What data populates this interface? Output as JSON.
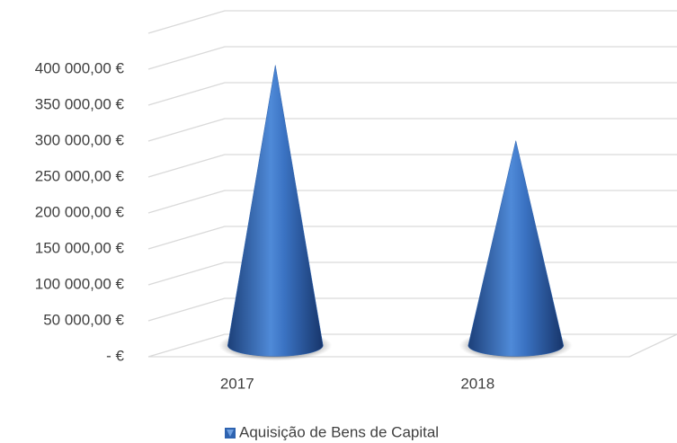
{
  "chart_data": {
    "type": "cone3d",
    "categories": [
      "2017",
      "2018"
    ],
    "series": [
      {
        "name": "Aquisição de Bens de Capital",
        "color": "#2e63b0",
        "values": [
          390000,
          285000
        ]
      }
    ],
    "ylim": [
      0,
      450000
    ],
    "yticks": [
      {
        "value": 0,
        "label": "-  €"
      },
      {
        "value": 50000,
        "label": "50 000,00 €"
      },
      {
        "value": 100000,
        "label": "100 000,00 €"
      },
      {
        "value": 150000,
        "label": "150 000,00 €"
      },
      {
        "value": 200000,
        "label": "200 000,00 €"
      },
      {
        "value": 250000,
        "label": "250 000,00 €"
      },
      {
        "value": 300000,
        "label": "300 000,00 €"
      },
      {
        "value": 350000,
        "label": "350 000,00 €"
      },
      {
        "value": 400000,
        "label": "400 000,00 €"
      }
    ],
    "grid": true,
    "legend": "bottom"
  }
}
